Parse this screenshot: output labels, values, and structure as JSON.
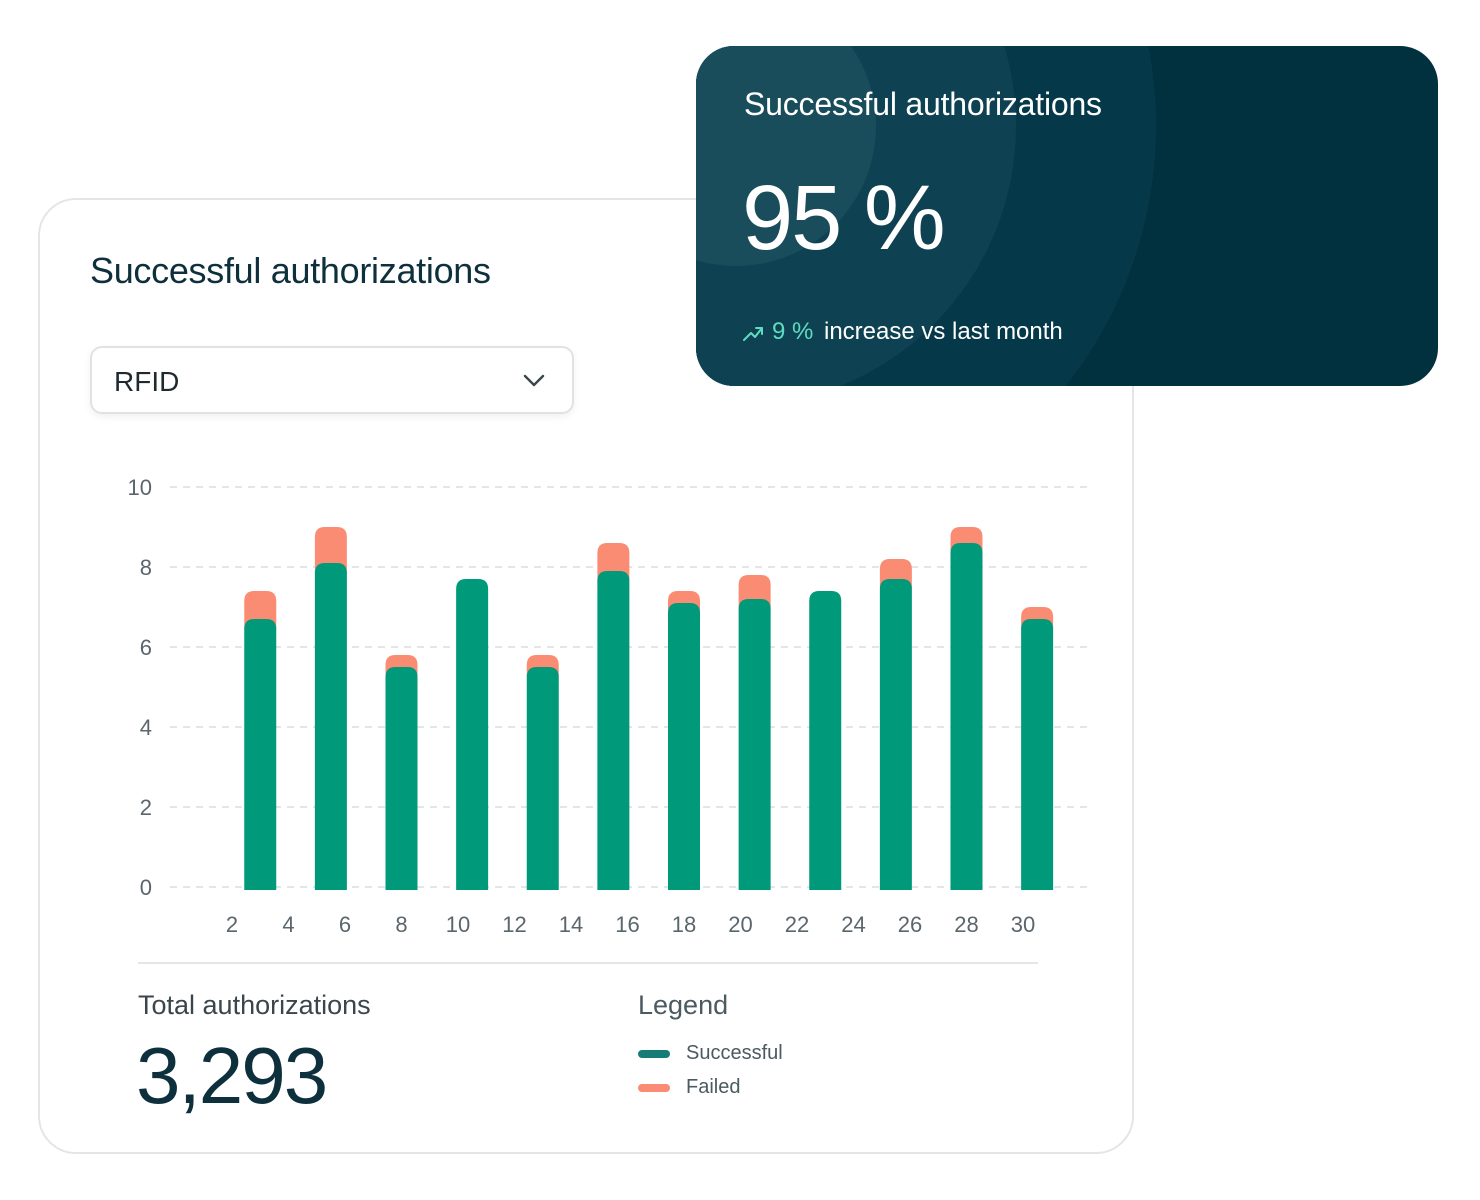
{
  "main_card": {
    "title": "Successful authorizations",
    "dropdown": {
      "selected": "RFID",
      "icon": "chevron-down-icon"
    },
    "total_label": "Total authorizations",
    "total_value": "3,293",
    "legend_title": "Legend"
  },
  "kpi_card": {
    "title": "Successful authorizations",
    "value": "95 %",
    "trend_icon": "trend-up-icon",
    "trend_value": "9 %",
    "trend_text": "increase vs last month"
  },
  "chart_data": {
    "type": "bar",
    "stacked": true,
    "x_tick_labels": [
      "2",
      "4",
      "6",
      "8",
      "10",
      "12",
      "14",
      "16",
      "18",
      "20",
      "22",
      "24",
      "26",
      "28",
      "30"
    ],
    "ylim": [
      0,
      10
    ],
    "y_ticks": [
      0,
      2,
      4,
      6,
      8,
      10
    ],
    "grid": true,
    "legend_placement": "bottom",
    "series": [
      {
        "name": "Successful",
        "color": "#009a7a",
        "x": [
          3,
          5.5,
          8,
          10.5,
          13,
          15.5,
          18,
          20.5,
          23,
          25.5,
          28,
          30.5
        ],
        "values": [
          6.7,
          8.1,
          5.5,
          7.7,
          5.5,
          7.9,
          7.1,
          7.2,
          7.4,
          7.7,
          8.6,
          6.7
        ]
      },
      {
        "name": "Failed",
        "color": "#fb8c74",
        "x": [
          3,
          5.5,
          8,
          10.5,
          13,
          15.5,
          18,
          20.5,
          23,
          25.5,
          28,
          30.5
        ],
        "values": [
          0.7,
          0.9,
          0.3,
          0,
          0.3,
          0.7,
          0.3,
          0.6,
          0,
          0.5,
          0.4,
          0.3
        ]
      }
    ],
    "legend_swatch_colors": {
      "Successful": "#167c77",
      "Failed": "#fb8c74"
    }
  }
}
